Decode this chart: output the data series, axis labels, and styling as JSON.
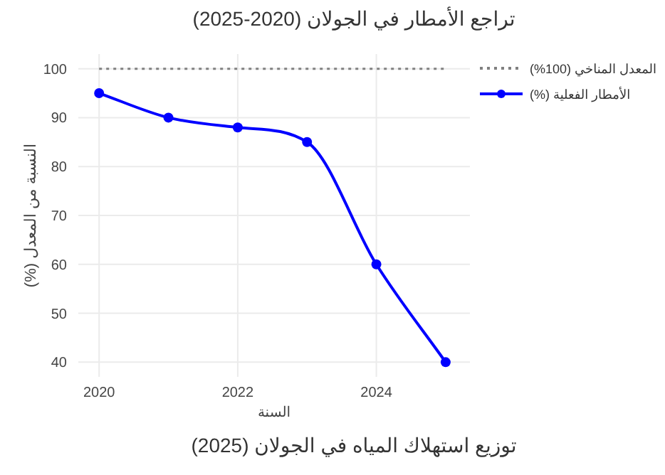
{
  "chart_data": {
    "type": "line",
    "title": "تراجع الأمطار في الجولان (2020-2025)",
    "xlabel": "السنة",
    "ylabel": "النسبة من المعدل (%)",
    "x": [
      2020,
      2021,
      2022,
      2023,
      2024,
      2025
    ],
    "series": [
      {
        "name": "المعدل المناخي (100%)",
        "color": "#808080",
        "values": [
          100,
          100,
          100,
          100,
          100,
          100
        ],
        "line_style": "dotted",
        "marker": "none"
      },
      {
        "name": "الأمطار الفعلية (%)",
        "color": "#0000ff",
        "values": [
          95,
          90,
          88,
          85,
          60,
          40
        ],
        "line_style": "solid",
        "marker": "circle"
      }
    ],
    "xlim": [
      2019.7,
      2025.35
    ],
    "ylim": [
      37,
      103
    ],
    "xticks": [
      2020,
      2022,
      2024
    ],
    "yticks": [
      40,
      50,
      60,
      70,
      80,
      90,
      100
    ],
    "grid": true,
    "legend": "top right",
    "annotations": [
      "توزيع استهلاك المياه في الجولان (2025)"
    ]
  }
}
